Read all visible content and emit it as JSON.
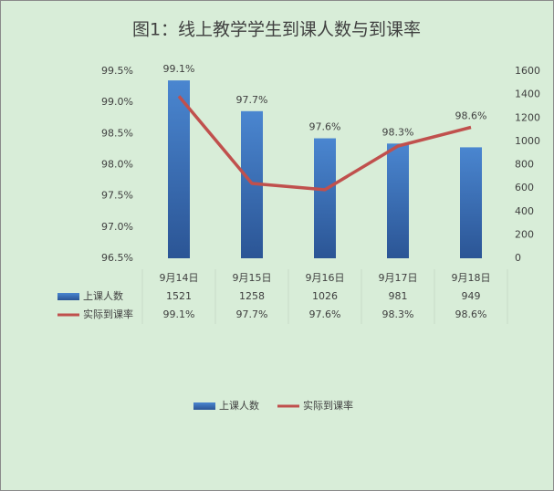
{
  "chart_data": {
    "type": "combo",
    "title": "图1：线上教学学生到课人数与到课率",
    "categories": [
      "9月14日",
      "9月15日",
      "9月16日",
      "9月17日",
      "9月18日"
    ],
    "series": [
      {
        "name": "上课人数",
        "type": "bar",
        "axis": "y2",
        "color": "#3a6fb5",
        "values": [
          1521,
          1258,
          1026,
          981,
          949
        ]
      },
      {
        "name": "实际到课率",
        "type": "line",
        "color": "#c0504d",
        "values": [
          99.1,
          97.7,
          97.6,
          98.3,
          98.6
        ],
        "value_labels": [
          "99.1%",
          "97.7%",
          "97.6%",
          "98.3%",
          "98.6%"
        ]
      }
    ],
    "ylim": [
      96.5,
      99.5
    ],
    "yticks": [
      {
        "value": 96.5,
        "label": "96.5%"
      },
      {
        "value": 97,
        "label": "97.0%"
      },
      {
        "value": 97.5,
        "label": "97.5%"
      },
      {
        "value": 98,
        "label": "98.0%"
      },
      {
        "value": 98.5,
        "label": "98.5%"
      },
      {
        "value": 99,
        "label": "99.0%"
      },
      {
        "value": 99.5,
        "label": "99.5%"
      }
    ],
    "y2lim": [
      0,
      1600
    ],
    "y2ticks": [
      0,
      200,
      400,
      600,
      800,
      1000,
      1200,
      1400,
      1600
    ],
    "legend": "bottom",
    "data_table": true
  }
}
